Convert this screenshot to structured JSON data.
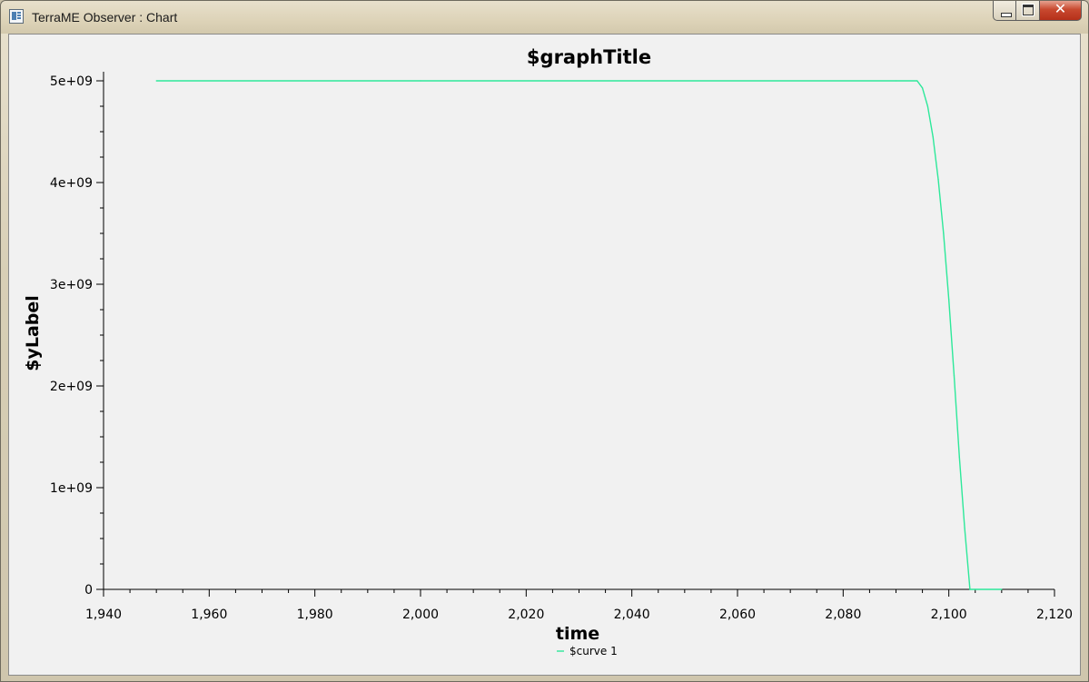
{
  "window": {
    "title": "TerraME Observer : Chart",
    "close_glyph": "✕"
  },
  "chart_data": {
    "type": "line",
    "title": "$graphTitle",
    "xlabel": "time",
    "ylabel": "$yLabel",
    "xlim": [
      1940,
      2120
    ],
    "ylim": [
      0,
      5000000000
    ],
    "x_ticks": [
      1940,
      1960,
      1980,
      2000,
      2020,
      2040,
      2060,
      2080,
      2100,
      2120
    ],
    "x_tick_labels": [
      "1,940",
      "1,960",
      "1,980",
      "2,000",
      "2,020",
      "2,040",
      "2,060",
      "2,080",
      "2,100",
      "2,120"
    ],
    "y_ticks": [
      0,
      1000000000,
      2000000000,
      3000000000,
      4000000000,
      5000000000
    ],
    "y_tick_labels": [
      "0",
      "1e+09",
      "2e+09",
      "3e+09",
      "4e+09",
      "5e+09"
    ],
    "grid": false,
    "legend_position": "bottom-center",
    "series": [
      {
        "name": "$curve 1",
        "color": "#2de89a",
        "x": [
          1950,
          2000,
          2090,
          2094,
          2095,
          2096,
          2097,
          2098,
          2099,
          2100,
          2101,
          2102,
          2103,
          2104,
          2105,
          2110
        ],
        "y": [
          5000000000,
          5000000000,
          5000000000,
          5000000000,
          4930000000,
          4750000000,
          4450000000,
          4030000000,
          3500000000,
          2850000000,
          2100000000,
          1300000000,
          600000000,
          0,
          0,
          0
        ]
      }
    ]
  }
}
